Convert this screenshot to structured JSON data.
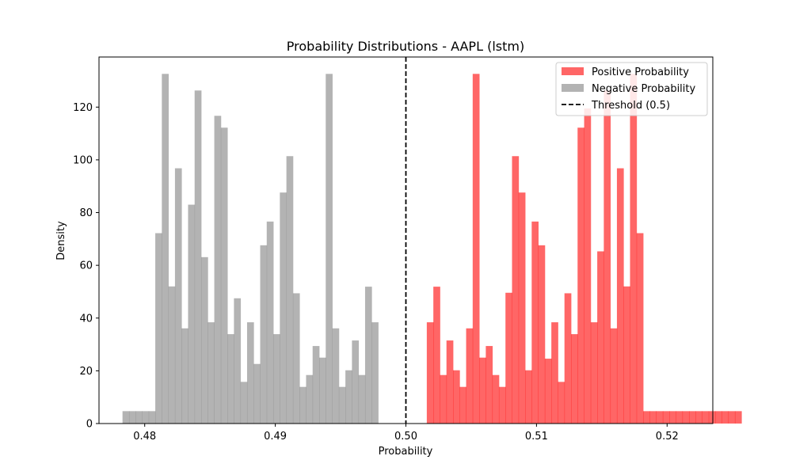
{
  "chart_data": {
    "type": "bar",
    "title": "Probability Distributions - AAPL (lstm)",
    "xlabel": "Probability",
    "ylabel": "Density",
    "xlim": [
      0.4765,
      0.5235
    ],
    "ylim": [
      0,
      139
    ],
    "xticks": [
      0.48,
      0.49,
      0.5,
      0.51,
      0.52
    ],
    "xtick_labels": [
      "0.48",
      "0.49",
      "0.50",
      "0.51",
      "0.52"
    ],
    "yticks": [
      0,
      20,
      40,
      60,
      80,
      100,
      120
    ],
    "ytick_labels": [
      "0",
      "20",
      "40",
      "60",
      "80",
      "100",
      "120"
    ],
    "legend_position": "top-right",
    "grid": false,
    "series": [
      {
        "name": "Positive Probability",
        "color": "#ff0000",
        "alpha": 0.6,
        "bin_start": 0.5016,
        "bin_width": 0.000502,
        "values": [
          38.4,
          51.9,
          18.4,
          31.5,
          20.2,
          13.9,
          36.1,
          132.6,
          25.0,
          29.4,
          18.4,
          13.9,
          49.6,
          101.4,
          87.6,
          20.2,
          76.6,
          67.6,
          24.6,
          38.4,
          15.8,
          49.4,
          33.9,
          112.2,
          119.5,
          38.4,
          65.3,
          126.3,
          36.1,
          96.8,
          52.0,
          132.6,
          72.2,
          4.7,
          4.7,
          4.7,
          4.7,
          4.7,
          4.7,
          4.7,
          4.7,
          4.7,
          4.7,
          4.7,
          4.7,
          4.7,
          4.7,
          4.7
        ]
      },
      {
        "name": "Negative Probability",
        "color": "#808080",
        "alpha": 0.6,
        "bin_start": 0.4783,
        "bin_width": 0.000502,
        "values": [
          4.7,
          4.7,
          4.7,
          4.7,
          4.7,
          72.2,
          132.6,
          52.0,
          96.8,
          36.1,
          83.0,
          126.3,
          63.1,
          38.4,
          116.7,
          112.2,
          33.9,
          47.5,
          15.8,
          38.4,
          22.6,
          67.6,
          76.6,
          33.9,
          87.6,
          101.4,
          49.4,
          13.9,
          18.4,
          29.4,
          25.0,
          132.6,
          36.1,
          13.9,
          20.2,
          31.5,
          18.4,
          51.9,
          38.4
        ]
      },
      {
        "name": "Threshold (0.5)",
        "type": "vline",
        "color": "#000000",
        "x": 0.5
      }
    ]
  }
}
